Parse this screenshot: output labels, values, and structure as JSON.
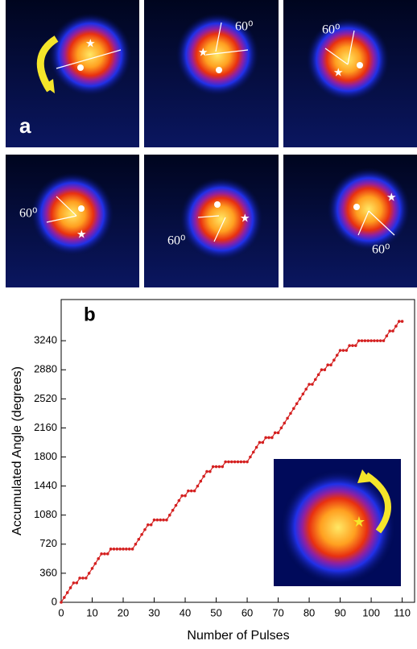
{
  "panels": {
    "label": "a",
    "angle_labels": [
      "60⁰",
      "60⁰",
      "60⁰",
      "60⁰",
      "60⁰"
    ]
  },
  "chart_data": {
    "type": "line",
    "label": "b",
    "xlabel": "Number of Pulses",
    "ylabel": "Accumulated Angle (degrees)",
    "x": [
      0,
      1,
      2,
      3,
      4,
      5,
      6,
      7,
      8,
      9,
      10,
      11,
      12,
      13,
      14,
      15,
      16,
      17,
      18,
      19,
      20,
      21,
      22,
      23,
      24,
      25,
      26,
      27,
      28,
      29,
      30,
      31,
      32,
      33,
      34,
      35,
      36,
      37,
      38,
      39,
      40,
      41,
      42,
      43,
      44,
      45,
      46,
      47,
      48,
      49,
      50,
      51,
      52,
      53,
      54,
      55,
      56,
      57,
      58,
      59,
      60,
      61,
      62,
      63,
      64,
      65,
      66,
      67,
      68,
      69,
      70,
      71,
      72,
      73,
      74,
      75,
      76,
      77,
      78,
      79,
      80,
      81,
      82,
      83,
      84,
      85,
      86,
      87,
      88,
      89,
      90,
      91,
      92,
      93,
      94,
      95,
      96,
      97,
      98,
      99,
      100,
      101,
      102,
      103,
      104,
      105,
      106,
      107,
      108,
      109,
      110
    ],
    "series": [
      {
        "color": "#d42020",
        "values": [
          0,
          60,
          120,
          180,
          240,
          240,
          300,
          300,
          300,
          360,
          420,
          480,
          540,
          600,
          600,
          600,
          660,
          660,
          660,
          660,
          660,
          660,
          660,
          660,
          720,
          780,
          840,
          900,
          960,
          960,
          1020,
          1020,
          1020,
          1020,
          1020,
          1080,
          1140,
          1200,
          1260,
          1320,
          1320,
          1380,
          1380,
          1380,
          1440,
          1500,
          1560,
          1620,
          1620,
          1680,
          1680,
          1680,
          1680,
          1740,
          1740,
          1740,
          1740,
          1740,
          1740,
          1740,
          1740,
          1800,
          1860,
          1920,
          1980,
          1980,
          2040,
          2040,
          2040,
          2100,
          2100,
          2160,
          2220,
          2280,
          2340,
          2400,
          2460,
          2520,
          2580,
          2640,
          2700,
          2700,
          2760,
          2820,
          2880,
          2880,
          2940,
          2940,
          3000,
          3060,
          3120,
          3120,
          3120,
          3180,
          3180,
          3180,
          3240,
          3240,
          3240,
          3240,
          3240,
          3240,
          3240,
          3240,
          3240,
          3300,
          3360,
          3360,
          3420,
          3480,
          3480
        ]
      }
    ],
    "xlim": [
      0,
      114
    ],
    "ylim": [
      0,
      3750
    ],
    "xticks": [
      0,
      10,
      20,
      30,
      40,
      50,
      60,
      70,
      80,
      90,
      100,
      110
    ],
    "yticks": [
      0,
      360,
      720,
      1080,
      1440,
      1800,
      2160,
      2520,
      2880,
      3240
    ]
  }
}
